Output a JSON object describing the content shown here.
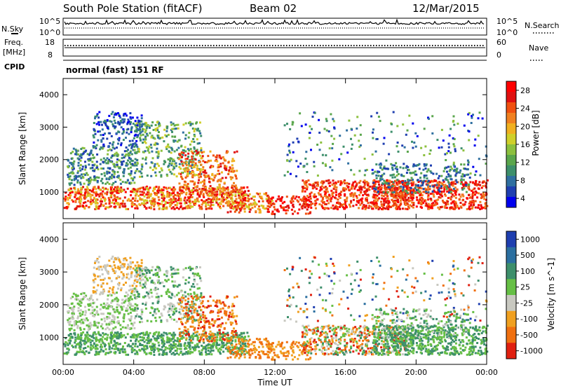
{
  "header": {
    "station": "South Pole Station (fitACF)",
    "beam": "Beam 02",
    "date": "12/Mar/2015"
  },
  "nsky_panel": {
    "left_label": "N.Sky",
    "left_ticks": [
      "10^5",
      "10^0"
    ],
    "right_label": "N.Search",
    "right_ticks": [
      "10^5",
      "10^0"
    ]
  },
  "freq_panel": {
    "left_label_1": "Freq.",
    "left_label_2": "[MHz]",
    "left_ticks": [
      "18",
      "8"
    ],
    "right_label": "Nave",
    "right_ticks": [
      "60",
      "0"
    ],
    "cpid_label": "CPID",
    "cpid_value": "normal (fast) 151 RF"
  },
  "colors": {
    "power": [
      "#0000ee",
      "#1f3fb0",
      "#2f6fa0",
      "#3d8f6b",
      "#5aa64c",
      "#8cc03e",
      "#cfcf2a",
      "#f0b020",
      "#f08020",
      "#f05010",
      "#e01010",
      "#ff0000"
    ],
    "velocity": [
      "#1f3fb0",
      "#2b6fa0",
      "#3d8f6b",
      "#66bf45",
      "#c8c8c0",
      "#f0a020",
      "#f07010",
      "#e02010"
    ]
  },
  "chart_data": [
    {
      "type": "heatmap",
      "title": "Power",
      "ylabel": "Slant Range [km]",
      "xlabel": "Time UT",
      "x_ticks": [
        "00:00",
        "04:00",
        "08:00",
        "12:00",
        "16:00",
        "20:00",
        "00:00"
      ],
      "y_ticks": [
        1000,
        2000,
        3000,
        4000
      ],
      "xlim_hours": [
        0,
        24
      ],
      "ylim_km": [
        180,
        4500
      ],
      "colorbar_label": "Power [dB]",
      "colorbar_ticks": [
        "28",
        "24",
        "20",
        "16",
        "12",
        "8",
        "4"
      ]
    },
    {
      "type": "heatmap",
      "title": "Velocity",
      "ylabel": "Slant Range [km]",
      "xlabel": "Time UT",
      "x_ticks": [
        "00:00",
        "04:00",
        "08:00",
        "12:00",
        "16:00",
        "20:00",
        "00:00"
      ],
      "y_ticks": [
        1000,
        2000,
        3000,
        4000
      ],
      "xlim_hours": [
        0,
        24
      ],
      "ylim_km": [
        180,
        4500
      ],
      "colorbar_label": "Velocity [m s^-1]",
      "colorbar_ticks": [
        "1000",
        "500",
        "100",
        "25",
        "-25",
        "-100",
        "-500",
        "-1000"
      ]
    }
  ]
}
